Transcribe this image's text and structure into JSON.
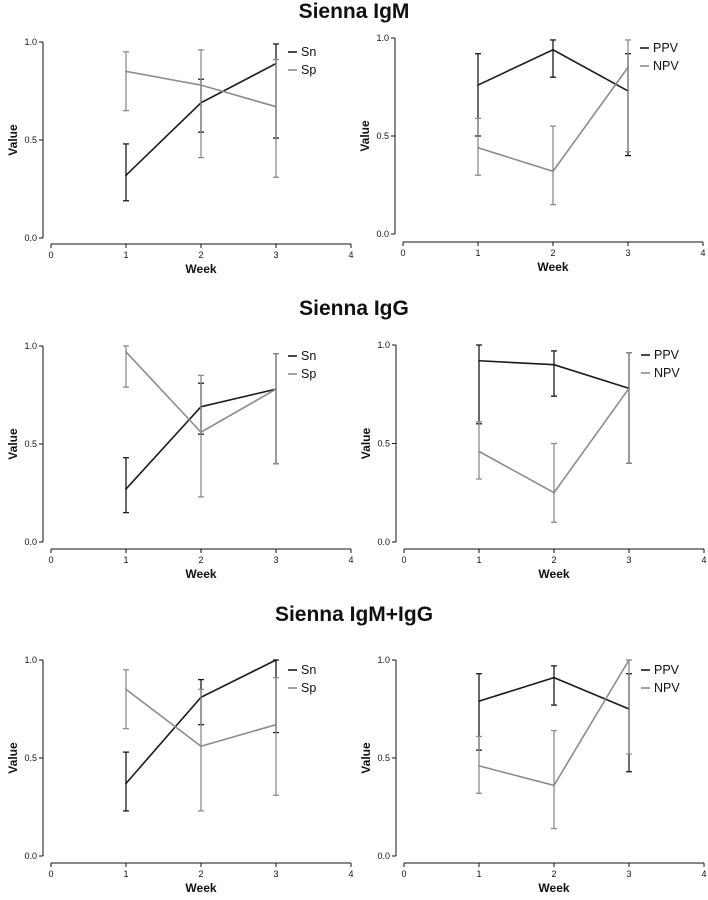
{
  "titles": [
    "Sienna IgM",
    "Sienna IgG",
    "Sienna IgM+IgG"
  ],
  "colors": {
    "dark": "#1a1a1a",
    "light": "#8c8c8c"
  },
  "chart_data": [
    {
      "type": "line",
      "title": "Sienna IgM",
      "xlabel": "Week",
      "ylabel": "Value",
      "xlim": [
        0,
        4
      ],
      "ylim": [
        0,
        1
      ],
      "xticks": [
        "0",
        "1",
        "2",
        "3",
        "4"
      ],
      "yticks": [
        "0.0",
        "0.5",
        "1.0"
      ],
      "legend": "top-right",
      "x": [
        1,
        2,
        3
      ],
      "series": [
        {
          "name": "Sn",
          "color": "dark",
          "values": [
            0.32,
            0.69,
            0.89
          ],
          "lower": [
            0.19,
            0.54,
            0.51
          ],
          "upper": [
            0.48,
            0.81,
            0.99
          ]
        },
        {
          "name": "Sp",
          "color": "light",
          "values": [
            0.85,
            0.78,
            0.67
          ],
          "lower": [
            0.65,
            0.41,
            0.31
          ],
          "upper": [
            0.95,
            0.96,
            0.91
          ]
        }
      ]
    },
    {
      "type": "line",
      "title": "Sienna IgM",
      "xlabel": "Week",
      "ylabel": "Value",
      "xlim": [
        0,
        4
      ],
      "ylim": [
        0,
        1
      ],
      "xticks": [
        "0",
        "1",
        "2",
        "3",
        "4"
      ],
      "yticks": [
        "0.0",
        "0.5",
        "1.0"
      ],
      "legend": "top-right",
      "x": [
        1,
        2,
        3
      ],
      "series": [
        {
          "name": "PPV",
          "color": "dark",
          "values": [
            0.76,
            0.94,
            0.73
          ],
          "lower": [
            0.5,
            0.8,
            0.4
          ],
          "upper": [
            0.92,
            0.99,
            0.92
          ]
        },
        {
          "name": "NPV",
          "color": "light",
          "values": [
            0.44,
            0.32,
            0.85
          ],
          "lower": [
            0.3,
            0.15,
            0.42
          ],
          "upper": [
            0.59,
            0.55,
            0.99
          ]
        }
      ]
    },
    {
      "type": "line",
      "title": "Sienna IgG",
      "xlabel": "Week",
      "ylabel": "Value",
      "xlim": [
        0,
        4
      ],
      "ylim": [
        0,
        1
      ],
      "xticks": [
        "0",
        "1",
        "2",
        "3",
        "4"
      ],
      "yticks": [
        "0.0",
        "0.5",
        "1.0"
      ],
      "legend": "top-right",
      "x": [
        1,
        2,
        3
      ],
      "series": [
        {
          "name": "Sn",
          "color": "dark",
          "values": [
            0.27,
            0.69,
            0.78
          ],
          "lower": [
            0.15,
            0.55,
            0.4
          ],
          "upper": [
            0.43,
            0.81,
            0.96
          ]
        },
        {
          "name": "Sp",
          "color": "light",
          "values": [
            0.97,
            0.56,
            0.78
          ],
          "lower": [
            0.79,
            0.23,
            0.4
          ],
          "upper": [
            1.0,
            0.85,
            0.96
          ]
        }
      ]
    },
    {
      "type": "line",
      "title": "Sienna IgG",
      "xlabel": "Week",
      "ylabel": "Value",
      "xlim": [
        0,
        4
      ],
      "ylim": [
        0,
        1
      ],
      "xticks": [
        "0",
        "1",
        "2",
        "3",
        "4"
      ],
      "yticks": [
        "0.0",
        "0.5",
        "1.0"
      ],
      "legend": "top-right",
      "x": [
        1,
        2,
        3
      ],
      "series": [
        {
          "name": "PPV",
          "color": "dark",
          "values": [
            0.92,
            0.9,
            0.78
          ],
          "lower": [
            0.6,
            0.74,
            0.4
          ],
          "upper": [
            1.0,
            0.97,
            0.96
          ]
        },
        {
          "name": "NPV",
          "color": "light",
          "values": [
            0.46,
            0.25,
            0.78
          ],
          "lower": [
            0.32,
            0.1,
            0.4
          ],
          "upper": [
            0.61,
            0.5,
            0.96
          ]
        }
      ]
    },
    {
      "type": "line",
      "title": "Sienna IgM+IgG",
      "xlabel": "Week",
      "ylabel": "Value",
      "xlim": [
        0,
        4
      ],
      "ylim": [
        0,
        1
      ],
      "xticks": [
        "0",
        "1",
        "2",
        "3",
        "4"
      ],
      "yticks": [
        "0.0",
        "0.5",
        "1.0"
      ],
      "legend": "top-right",
      "x": [
        1,
        2,
        3
      ],
      "series": [
        {
          "name": "Sn",
          "color": "dark",
          "values": [
            0.37,
            0.81,
            1.0
          ],
          "lower": [
            0.23,
            0.67,
            0.63
          ],
          "upper": [
            0.53,
            0.9,
            1.0
          ]
        },
        {
          "name": "Sp",
          "color": "light",
          "values": [
            0.85,
            0.56,
            0.67
          ],
          "lower": [
            0.65,
            0.23,
            0.31
          ],
          "upper": [
            0.95,
            0.85,
            0.91
          ]
        }
      ]
    },
    {
      "type": "line",
      "title": "Sienna IgM+IgG",
      "xlabel": "Week",
      "ylabel": "Value",
      "xlim": [
        0,
        4
      ],
      "ylim": [
        0,
        1
      ],
      "xticks": [
        "0",
        "1",
        "2",
        "3",
        "4"
      ],
      "yticks": [
        "0.0",
        "0.5",
        "1.0"
      ],
      "legend": "top-right",
      "x": [
        1,
        2,
        3
      ],
      "series": [
        {
          "name": "PPV",
          "color": "dark",
          "values": [
            0.79,
            0.91,
            0.75
          ],
          "lower": [
            0.54,
            0.77,
            0.43
          ],
          "upper": [
            0.93,
            0.97,
            0.93
          ]
        },
        {
          "name": "NPV",
          "color": "light",
          "values": [
            0.46,
            0.36,
            1.0
          ],
          "lower": [
            0.32,
            0.14,
            0.52
          ],
          "upper": [
            0.61,
            0.64,
            1.0
          ]
        }
      ]
    }
  ]
}
